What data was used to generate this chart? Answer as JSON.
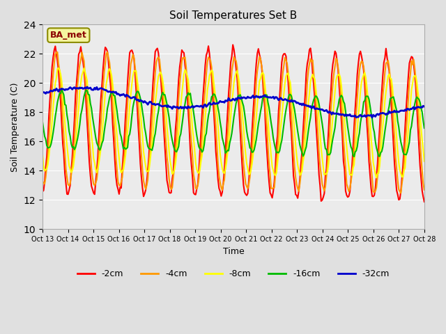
{
  "title": "Soil Temperatures Set B",
  "xlabel": "Time",
  "ylabel": "Soil Temperature (C)",
  "ylim": [
    10,
    24
  ],
  "yticks": [
    10,
    12,
    14,
    16,
    18,
    20,
    22,
    24
  ],
  "bg_color": "#e0e0e0",
  "plot_bg_color": "#ebebeb",
  "annotation_text": "BA_met",
  "annotation_bg": "#f5f5a0",
  "annotation_edge": "#8b8b00",
  "annotation_text_color": "#8b0000",
  "line_colors": {
    "-2cm": "#ff0000",
    "-4cm": "#ff9900",
    "-8cm": "#ffff00",
    "-16cm": "#00bb00",
    "-32cm": "#0000cc"
  },
  "line_widths": {
    "-2cm": 1.5,
    "-4cm": 1.5,
    "-8cm": 1.5,
    "-16cm": 1.5,
    "-32cm": 2.0
  },
  "x_tick_labels": [
    "Oct 13",
    "Oct 14",
    "Oct 15",
    "Oct 16",
    "Oct 17",
    "Oct 18",
    "Oct 19",
    "Oct 20",
    "Oct 21",
    "Oct 22",
    "Oct 23",
    "Oct 24",
    "Oct 25",
    "Oct 26",
    "Oct 27",
    "Oct 28"
  ],
  "num_days": 15,
  "points_per_day": 24
}
